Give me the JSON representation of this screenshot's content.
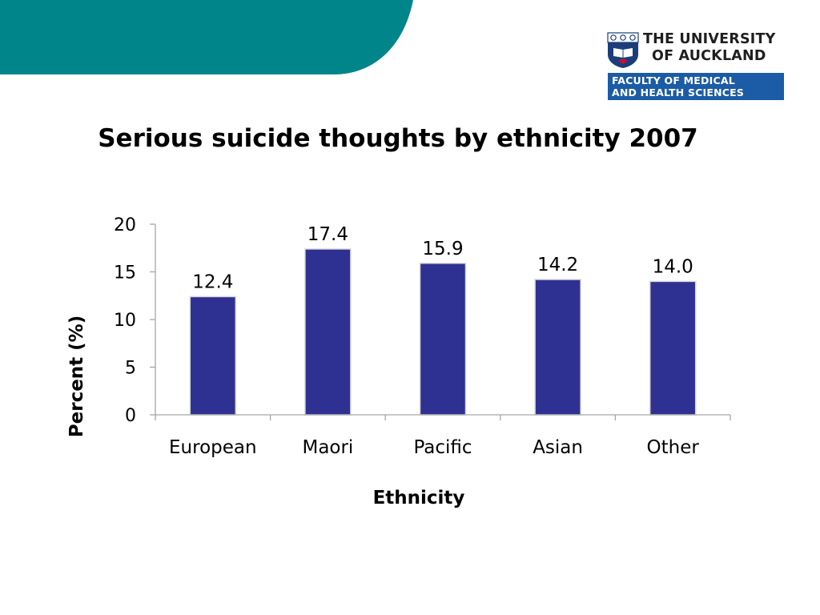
{
  "slide": {
    "title": "Serious suicide thoughts by ethnicity 2007"
  },
  "logo": {
    "university_line1": "THE UNIVERSITY",
    "university_line2": "OF AUCKLAND",
    "faculty_line1": "FACULTY OF MEDICAL",
    "faculty_line2": "AND HEALTH SCIENCES",
    "crest_icon": "university-crest-icon"
  },
  "colors": {
    "teal_banner": "#00858a",
    "bar_fill": "#2e3192",
    "faculty_band": "#1c5ba5",
    "axis": "#a6a6a6"
  },
  "chart_data": {
    "type": "bar",
    "title": "",
    "xlabel": "Ethnicity",
    "ylabel": "Percent (%)",
    "categories": [
      "European",
      "Maori",
      "Pacific",
      "Asian",
      "Other"
    ],
    "values": [
      12.4,
      17.4,
      15.9,
      14.2,
      14.0
    ],
    "value_labels": [
      "12.4",
      "17.4",
      "15.9",
      "14.2",
      "14.0"
    ],
    "ylim": [
      0,
      20
    ],
    "yticks": [
      0,
      5,
      10,
      15,
      20
    ],
    "grid": false,
    "legend": "none"
  }
}
